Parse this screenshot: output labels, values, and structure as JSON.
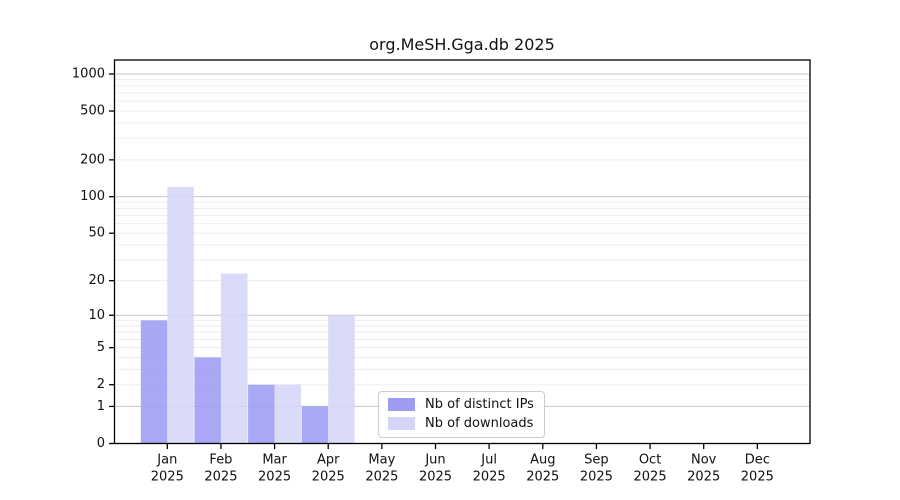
{
  "chart_data": {
    "type": "bar",
    "title": "org.MeSH.Gga.db 2025",
    "categories": [
      "Jan 2025",
      "Feb 2025",
      "Mar 2025",
      "Apr 2025",
      "May 2025",
      "Jun 2025",
      "Jul 2025",
      "Aug 2025",
      "Sep 2025",
      "Oct 2025",
      "Nov 2025",
      "Dec 2025"
    ],
    "series": [
      {
        "name": "Nb of distinct IPs",
        "color": "#9c9cf3",
        "values": [
          9,
          4,
          2,
          1,
          0,
          0,
          0,
          0,
          0,
          0,
          0,
          0
        ]
      },
      {
        "name": "Nb of downloads",
        "color": "#d5d5f8",
        "values": [
          120,
          23,
          2,
          10,
          0,
          0,
          0,
          0,
          0,
          0,
          0,
          0
        ]
      }
    ],
    "yscale": "log1p",
    "yticks": [
      0,
      1,
      2,
      5,
      10,
      20,
      50,
      100,
      200,
      500,
      1000
    ],
    "ylim": [
      0,
      1300
    ],
    "grid": true,
    "legend_position": "lower center",
    "colors": {
      "major_grid": "#c6c6c6",
      "minor_grid": "#ededed",
      "axis": "#000000",
      "text": "#111111"
    }
  }
}
